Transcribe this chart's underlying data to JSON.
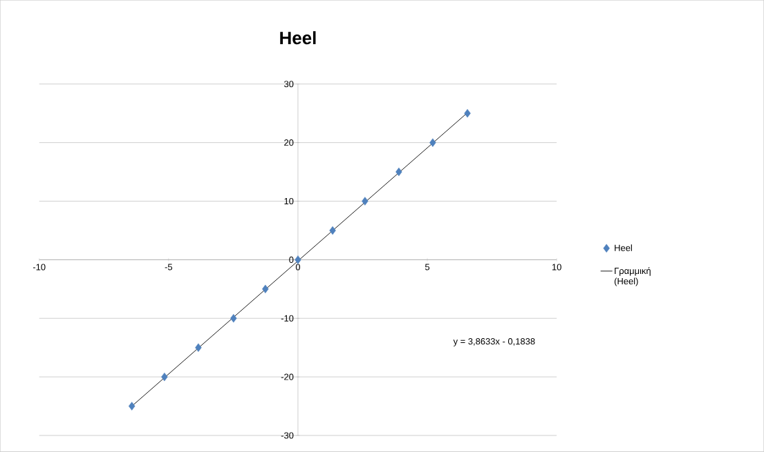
{
  "chart_data": {
    "type": "scatter",
    "title": "Heel",
    "series": [
      {
        "name": "Heel",
        "marker": "diamond",
        "color": "#4f81bd",
        "x": [
          -6.42,
          -5.16,
          -3.85,
          -2.49,
          -1.26,
          0,
          1.34,
          2.59,
          3.9,
          5.21,
          6.55
        ],
        "values": [
          -25,
          -20,
          -15,
          -10,
          -5,
          0,
          5,
          10,
          15,
          20,
          25
        ]
      },
      {
        "name": "Γραμμική (Heel)",
        "type": "line",
        "marker": "none",
        "color": "#000000",
        "x": [
          -6.42,
          6.55
        ],
        "values": [
          -25,
          25.1
        ]
      }
    ],
    "xlim": [
      -10,
      10
    ],
    "xticks": [
      -10,
      -5,
      0,
      5,
      10
    ],
    "ylim": [
      -30,
      30
    ],
    "yticks": [
      -30,
      -20,
      -10,
      0,
      10,
      20,
      30
    ],
    "grid": "y",
    "legend": "right",
    "annotations": [
      "y = 3,8633x - 0,1838"
    ]
  }
}
